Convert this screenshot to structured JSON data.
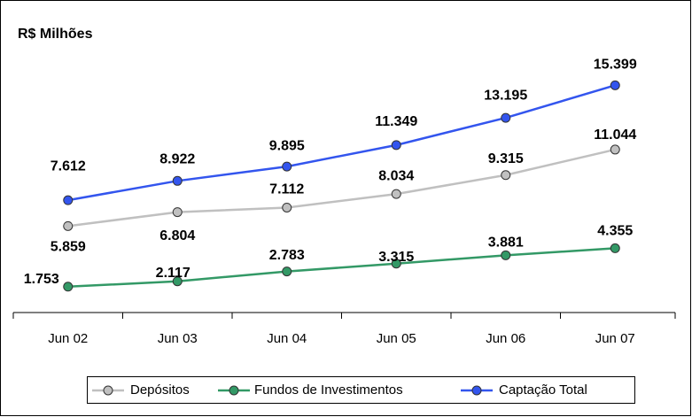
{
  "chart_data": {
    "type": "line",
    "title": "R$ Milhões",
    "categories": [
      "Jun 02",
      "Jun 03",
      "Jun 04",
      "Jun 05",
      "Jun 06",
      "Jun 07"
    ],
    "ylim": [
      0,
      18000
    ],
    "series": [
      {
        "name": "Depósitos",
        "color": "#c0c0c0",
        "values": [
          5859,
          6804,
          7112,
          8034,
          9315,
          11044
        ],
        "value_labels": [
          "5.859",
          "6.804",
          "7.112",
          "8.034",
          "9.315",
          "11.044"
        ]
      },
      {
        "name": "Fundos de Investimentos",
        "color": "#339966",
        "values": [
          1753,
          2117,
          2783,
          3315,
          3881,
          4355
        ],
        "value_labels": [
          "1.753",
          "2.117",
          "2.783",
          "3.315",
          "3.881",
          "4.355"
        ]
      },
      {
        "name": "Captação Total",
        "color": "#3355ee",
        "values": [
          7612,
          8922,
          9895,
          11349,
          13195,
          15399
        ],
        "value_labels": [
          "7.612",
          "8.922",
          "9.895",
          "11.349",
          "13.195",
          "15.399"
        ]
      }
    ]
  }
}
